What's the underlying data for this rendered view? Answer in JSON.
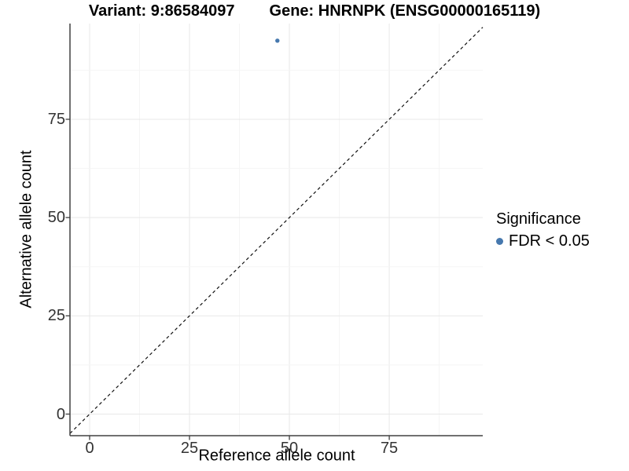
{
  "title": {
    "variant": "Variant: 9:86584097",
    "gene": "Gene: HNRNPK (ENSG00000165119)"
  },
  "chart_data": {
    "type": "scatter",
    "xlabel": "Reference allele count",
    "ylabel": "Alternative allele count",
    "x_ticks": [
      0,
      25,
      50,
      75
    ],
    "y_ticks": [
      0,
      25,
      50,
      75
    ],
    "xlim": [
      -4.9,
      98.4
    ],
    "ylim": [
      -5.5,
      99.4
    ],
    "minor_step": 12.5,
    "grid": true,
    "points": [
      {
        "x": 47,
        "y": 95,
        "series": "FDR < 0.05"
      }
    ],
    "identity_line": {
      "slope": 1,
      "intercept": 0,
      "style": "dashed"
    },
    "legend": {
      "title": "Significance",
      "position": "right",
      "items": [
        {
          "label": "FDR < 0.05",
          "color": "#4678ae"
        }
      ]
    }
  },
  "colors": {
    "point": "#4678ae",
    "axis": "#404040",
    "tick_text": "#333333",
    "grid_major": "#e8e8e8",
    "grid_minor": "#f5f5f5",
    "identity_line": "#111111",
    "background": "#ffffff"
  }
}
